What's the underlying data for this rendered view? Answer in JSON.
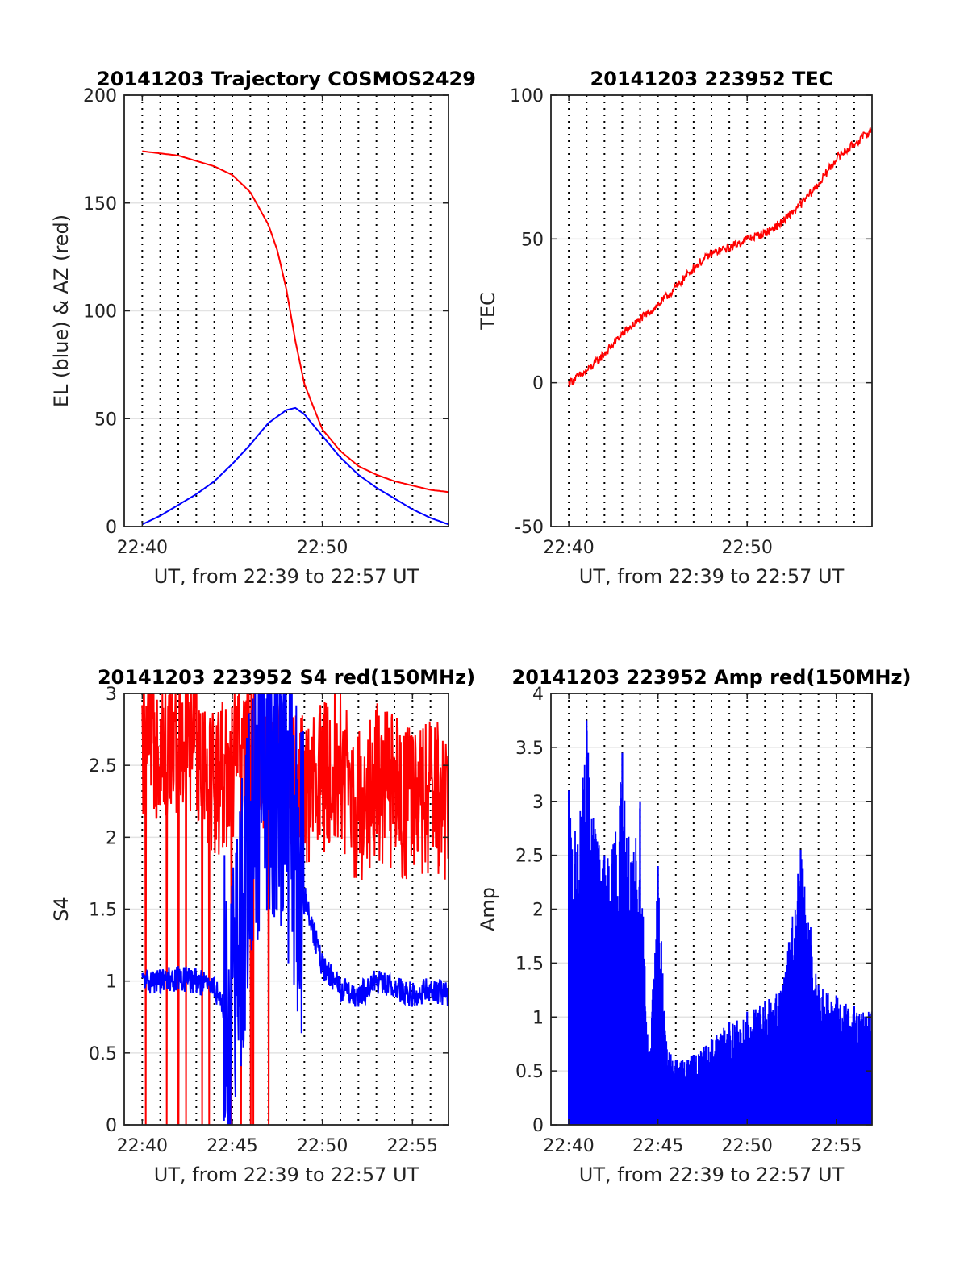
{
  "chart_data": [
    {
      "type": "line",
      "title": "20141203 Trajectory COSMOS2429",
      "xlabel": "UT, from 22:39 to 22:57 UT",
      "ylabel": "EL (blue) & AZ (red)",
      "xlim": [
        "22:39",
        "22:57"
      ],
      "ylim": [
        0,
        200
      ],
      "yticks": [
        "0",
        "50",
        "100",
        "150",
        "200"
      ],
      "xticks": [
        "22:40",
        "22:50"
      ],
      "grid": "dotted vertical minute lines, light horizontal lines",
      "series": [
        {
          "color": "#ff0000",
          "x": [
            "22:40",
            "22:42",
            "22:44",
            "22:45",
            "22:46",
            "22:47",
            "22:47:30",
            "22:48",
            "22:48:30",
            "22:49",
            "22:50",
            "22:51",
            "22:52",
            "22:53",
            "22:54",
            "22:55",
            "22:56",
            "22:57"
          ],
          "values": [
            174,
            172,
            167,
            163,
            155,
            140,
            128,
            110,
            86,
            66,
            45,
            35,
            28,
            24,
            21,
            19,
            17,
            16
          ]
        },
        {
          "color": "#0000ff",
          "x": [
            "22:40",
            "22:41",
            "22:42",
            "22:43",
            "22:44",
            "22:45",
            "22:46",
            "22:47",
            "22:48",
            "22:48:30",
            "22:49",
            "22:50",
            "22:51",
            "22:52",
            "22:53",
            "22:54",
            "22:55",
            "22:56",
            "22:57"
          ],
          "values": [
            1,
            5,
            10,
            15,
            21,
            29,
            38,
            48,
            54,
            55,
            52,
            42,
            32,
            24,
            18,
            13,
            8,
            4,
            1
          ]
        }
      ]
    },
    {
      "type": "line",
      "title": "20141203 223952 TEC",
      "xlabel": "UT, from 22:39 to 22:57 UT",
      "ylabel": "TEC",
      "xlim": [
        "22:39",
        "22:57"
      ],
      "ylim": [
        -50,
        100
      ],
      "yticks": [
        "-50",
        "0",
        "50",
        "100"
      ],
      "xticks": [
        "22:40",
        "22:50"
      ],
      "grid": "dotted vertical minute lines, light horizontal lines",
      "series": [
        {
          "color": "#ff0000",
          "x": [
            "22:40",
            "22:41",
            "22:42",
            "22:43",
            "22:44",
            "22:45",
            "22:46",
            "22:47",
            "22:48",
            "22:49",
            "22:50",
            "22:51",
            "22:52",
            "22:53",
            "22:54",
            "22:55",
            "22:56",
            "22:57"
          ],
          "values": [
            0,
            4,
            10,
            17,
            22,
            27,
            33,
            40,
            45,
            47,
            50,
            52,
            56,
            62,
            69,
            78,
            83,
            88
          ]
        }
      ]
    },
    {
      "type": "line",
      "title": "20141203 223952 S4 red(150MHz)",
      "xlabel": "UT, from 22:39 to 22:57 UT",
      "ylabel": "S4",
      "xlim": [
        "22:39",
        "22:57"
      ],
      "ylim": [
        0,
        3
      ],
      "yticks": [
        "0",
        "0.5",
        "1",
        "1.5",
        "2",
        "2.5",
        "3"
      ],
      "xticks": [
        "22:40",
        "22:45",
        "22:50",
        "22:55"
      ],
      "grid": "dotted vertical minute lines, light horizontal lines",
      "series": [
        {
          "color": "#ff0000",
          "x": [
            "22:40",
            "22:41",
            "22:42",
            "22:43",
            "22:44",
            "22:45",
            "22:46",
            "22:47",
            "22:48",
            "22:49",
            "22:50",
            "22:51",
            "22:52",
            "22:53",
            "22:54",
            "22:55",
            "22:56",
            "22:57"
          ],
          "values": [
            2.6,
            2.7,
            2.6,
            2.7,
            2.4,
            2.5,
            2.6,
            2.5,
            2.4,
            2.3,
            2.4,
            2.5,
            2.2,
            2.4,
            2.3,
            2.2,
            2.3,
            2.2
          ]
        },
        {
          "color": "#0000ff",
          "x": [
            "22:40",
            "22:41",
            "22:42",
            "22:43",
            "22:44",
            "22:45",
            "22:46",
            "22:47",
            "22:48",
            "22:49",
            "22:50",
            "22:51",
            "22:52",
            "22:53",
            "22:54",
            "22:55",
            "22:56",
            "22:57"
          ],
          "values": [
            1.0,
            1.0,
            1.02,
            1.0,
            0.95,
            0.7,
            2.0,
            2.6,
            2.3,
            1.6,
            1.1,
            0.95,
            0.9,
            1.0,
            0.95,
            0.9,
            0.95,
            0.9
          ]
        }
      ]
    },
    {
      "type": "line",
      "title": "20141203 223952 Amp red(150MHz)",
      "xlabel": "UT, from 22:39 to 22:57 UT",
      "ylabel": "Amp",
      "xlim": [
        "22:39",
        "22:57"
      ],
      "ylim": [
        0,
        4
      ],
      "yticks": [
        "0",
        "0.5",
        "1",
        "1.5",
        "2",
        "2.5",
        "3",
        "3.5",
        "4"
      ],
      "xticks": [
        "22:40",
        "22:45",
        "22:50",
        "22:55"
      ],
      "grid": "dotted vertical minute lines, light horizontal lines",
      "series": [
        {
          "color": "#0000ff",
          "x": [
            "22:40",
            "22:40:30",
            "22:41",
            "22:41:30",
            "22:42",
            "22:42:30",
            "22:43",
            "22:43:30",
            "22:44",
            "22:44:30",
            "22:45",
            "22:45:30",
            "22:46",
            "22:47",
            "22:48",
            "22:49",
            "22:50",
            "22:51",
            "22:52",
            "22:53",
            "22:54",
            "22:55",
            "22:56",
            "22:57"
          ],
          "values": [
            3.1,
            2.6,
            3.75,
            2.7,
            2.5,
            2.6,
            3.45,
            2.4,
            3.0,
            0.5,
            2.4,
            0.7,
            0.6,
            0.65,
            0.8,
            0.95,
            1.05,
            1.15,
            1.3,
            2.55,
            1.3,
            1.2,
            1.1,
            1.05
          ]
        }
      ]
    }
  ]
}
